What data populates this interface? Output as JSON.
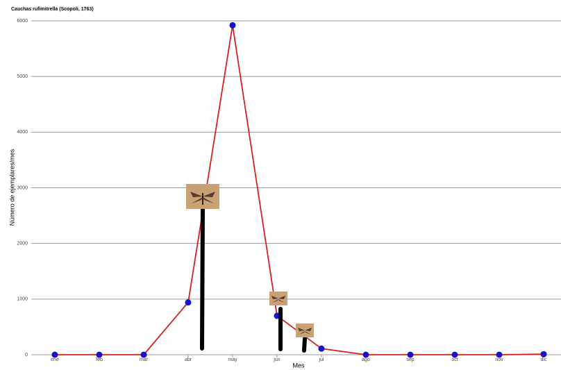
{
  "chart_data": {
    "type": "line",
    "title": "Cauchas rufimitrella (Scopoli, 1763)",
    "xlabel": "Mes",
    "ylabel": "Número de ejemplares/mes",
    "categories": [
      "ene",
      "feb",
      "mar",
      "abr",
      "may",
      "jun",
      "jul",
      "ago",
      "sep",
      "oct",
      "nov",
      "dic"
    ],
    "values": [
      0,
      0,
      0,
      940,
      5920,
      700,
      110,
      0,
      0,
      0,
      0,
      10
    ],
    "color": "#d61f1f",
    "marker_color": "#1414cc",
    "ylim": [
      0,
      6000
    ],
    "yticks": [
      0,
      1000,
      2000,
      3000,
      4000,
      5000,
      6000
    ],
    "grid": true
  }
}
